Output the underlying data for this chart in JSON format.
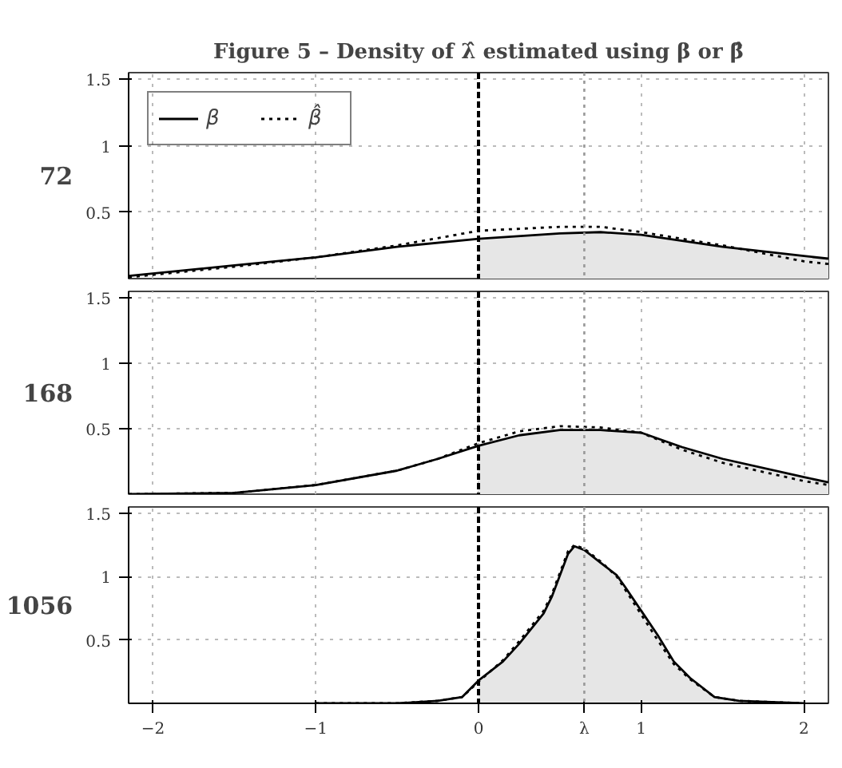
{
  "chart_data": [
    {
      "type": "line",
      "title": "Figure 5 – Density of λ̂ estimated using β or β̂",
      "ylabel": "72",
      "xlim": [
        -2.15,
        2.15
      ],
      "ylim": [
        0,
        1.55
      ],
      "xticks": [
        -2,
        -1,
        0,
        1,
        2
      ],
      "yticks": [
        0.5,
        1,
        1.5
      ],
      "grid": true,
      "legend": "top left",
      "tick_labels": "y",
      "ref_lines": [
        {
          "axis": "x",
          "value": 0,
          "color": "#000000",
          "line_style": "dashed"
        },
        {
          "axis": "x",
          "value": 0.65,
          "color": "#999999",
          "line_style": "dotted"
        }
      ],
      "series": [
        {
          "type": "area",
          "color": "#e6e6e6",
          "x": [
            0,
            0.5,
            0.75,
            1,
            1.5,
            2,
            2.15
          ],
          "values": [
            0.3,
            0.34,
            0.35,
            0.33,
            0.24,
            0.17,
            0.15
          ]
        },
        {
          "name": "β",
          "color": "#000000",
          "line_style": "solid",
          "x": [
            -2.15,
            -1.5,
            -1,
            -0.5,
            0,
            0.5,
            0.75,
            1,
            1.5,
            2,
            2.15
          ],
          "values": [
            0.02,
            0.1,
            0.16,
            0.24,
            0.3,
            0.34,
            0.35,
            0.33,
            0.24,
            0.17,
            0.15
          ]
        },
        {
          "name": "β̂",
          "color": "#000000",
          "line_style": "dotted",
          "x": [
            -2.15,
            -1.5,
            -1,
            -0.5,
            0,
            0.5,
            0.75,
            1,
            1.5,
            2,
            2.15
          ],
          "values": [
            0.01,
            0.09,
            0.16,
            0.25,
            0.36,
            0.39,
            0.39,
            0.35,
            0.25,
            0.13,
            0.11
          ]
        }
      ]
    },
    {
      "type": "line",
      "ylabel": "168",
      "xlim": [
        -2.15,
        2.15
      ],
      "ylim": [
        0,
        1.55
      ],
      "xticks": [
        -2,
        -1,
        0,
        1,
        2
      ],
      "yticks": [
        0.5,
        1,
        1.5
      ],
      "grid": true,
      "tick_labels": "y",
      "ref_lines": [
        {
          "axis": "x",
          "value": 0,
          "color": "#000000",
          "line_style": "dashed"
        },
        {
          "axis": "x",
          "value": 0.65,
          "color": "#999999",
          "line_style": "dotted"
        }
      ],
      "series": [
        {
          "type": "area",
          "color": "#e6e6e6",
          "x": [
            0,
            0.25,
            0.5,
            0.75,
            1,
            1.25,
            1.5,
            2,
            2.15
          ],
          "values": [
            0.37,
            0.45,
            0.49,
            0.49,
            0.47,
            0.36,
            0.27,
            0.13,
            0.09
          ]
        },
        {
          "color": "#000000",
          "line_style": "solid",
          "x": [
            -2.15,
            -1.5,
            -1,
            -0.5,
            -0.25,
            0,
            0.25,
            0.5,
            0.75,
            1,
            1.25,
            1.5,
            2,
            2.15
          ],
          "values": [
            0,
            0.01,
            0.07,
            0.18,
            0.27,
            0.37,
            0.45,
            0.49,
            0.49,
            0.47,
            0.36,
            0.27,
            0.13,
            0.09
          ]
        },
        {
          "color": "#000000",
          "line_style": "dotted",
          "x": [
            -2.15,
            -1.5,
            -1,
            -0.5,
            -0.25,
            0,
            0.25,
            0.5,
            0.75,
            1,
            1.25,
            1.5,
            2,
            2.15
          ],
          "values": [
            0,
            0.01,
            0.07,
            0.18,
            0.27,
            0.39,
            0.48,
            0.52,
            0.51,
            0.47,
            0.34,
            0.24,
            0.1,
            0.07
          ]
        }
      ]
    },
    {
      "type": "line",
      "ylabel": "1056",
      "xlim": [
        -2.15,
        2.15
      ],
      "ylim": [
        0,
        1.55
      ],
      "xticks": [
        -2,
        -1,
        0,
        {
          "value": 0.65,
          "label": "λ"
        },
        1,
        2
      ],
      "yticks": [
        0.5,
        1,
        1.5
      ],
      "grid": true,
      "ref_lines": [
        {
          "axis": "x",
          "value": 0,
          "color": "#000000",
          "line_style": "dashed"
        },
        {
          "axis": "x",
          "value": 0.65,
          "color": "#999999",
          "line_style": "dotted"
        }
      ],
      "series": [
        {
          "type": "area",
          "color": "#e6e6e6",
          "x": [
            0,
            0.15,
            0.25,
            0.4,
            0.45,
            0.5,
            0.55,
            0.59,
            0.65,
            0.75,
            0.85,
            0.9,
            1,
            1.1,
            1.2,
            1.3,
            1.45,
            1.6,
            1.8,
            2
          ],
          "values": [
            0.18,
            0.33,
            0.47,
            0.71,
            0.84,
            1.01,
            1.18,
            1.24,
            1.21,
            1.11,
            1.01,
            0.92,
            0.73,
            0.54,
            0.33,
            0.2,
            0.05,
            0.02,
            0.01,
            0
          ]
        },
        {
          "color": "#000000",
          "line_style": "solid",
          "x": [
            -1,
            -0.5,
            -0.25,
            -0.1,
            0,
            0.15,
            0.25,
            0.4,
            0.45,
            0.5,
            0.55,
            0.59,
            0.65,
            0.75,
            0.85,
            0.9,
            1,
            1.1,
            1.2,
            1.3,
            1.45,
            1.6,
            1.8,
            2
          ],
          "values": [
            0,
            0,
            0.02,
            0.05,
            0.18,
            0.33,
            0.47,
            0.71,
            0.84,
            1.01,
            1.18,
            1.24,
            1.21,
            1.11,
            1.01,
            0.92,
            0.73,
            0.54,
            0.33,
            0.2,
            0.05,
            0.02,
            0.01,
            0
          ]
        },
        {
          "color": "#000000",
          "line_style": "dotted",
          "x": [
            -1,
            -0.5,
            -0.25,
            -0.1,
            0,
            0.15,
            0.25,
            0.4,
            0.45,
            0.5,
            0.55,
            0.59,
            0.65,
            0.75,
            0.85,
            0.9,
            1,
            1.1,
            1.2,
            1.3,
            1.45,
            1.6,
            1.8,
            2
          ],
          "values": [
            0,
            0,
            0.02,
            0.05,
            0.17,
            0.34,
            0.49,
            0.73,
            0.86,
            1.03,
            1.2,
            1.25,
            1.22,
            1.12,
            1.0,
            0.9,
            0.7,
            0.5,
            0.31,
            0.19,
            0.05,
            0.02,
            0.01,
            0
          ]
        }
      ]
    }
  ]
}
